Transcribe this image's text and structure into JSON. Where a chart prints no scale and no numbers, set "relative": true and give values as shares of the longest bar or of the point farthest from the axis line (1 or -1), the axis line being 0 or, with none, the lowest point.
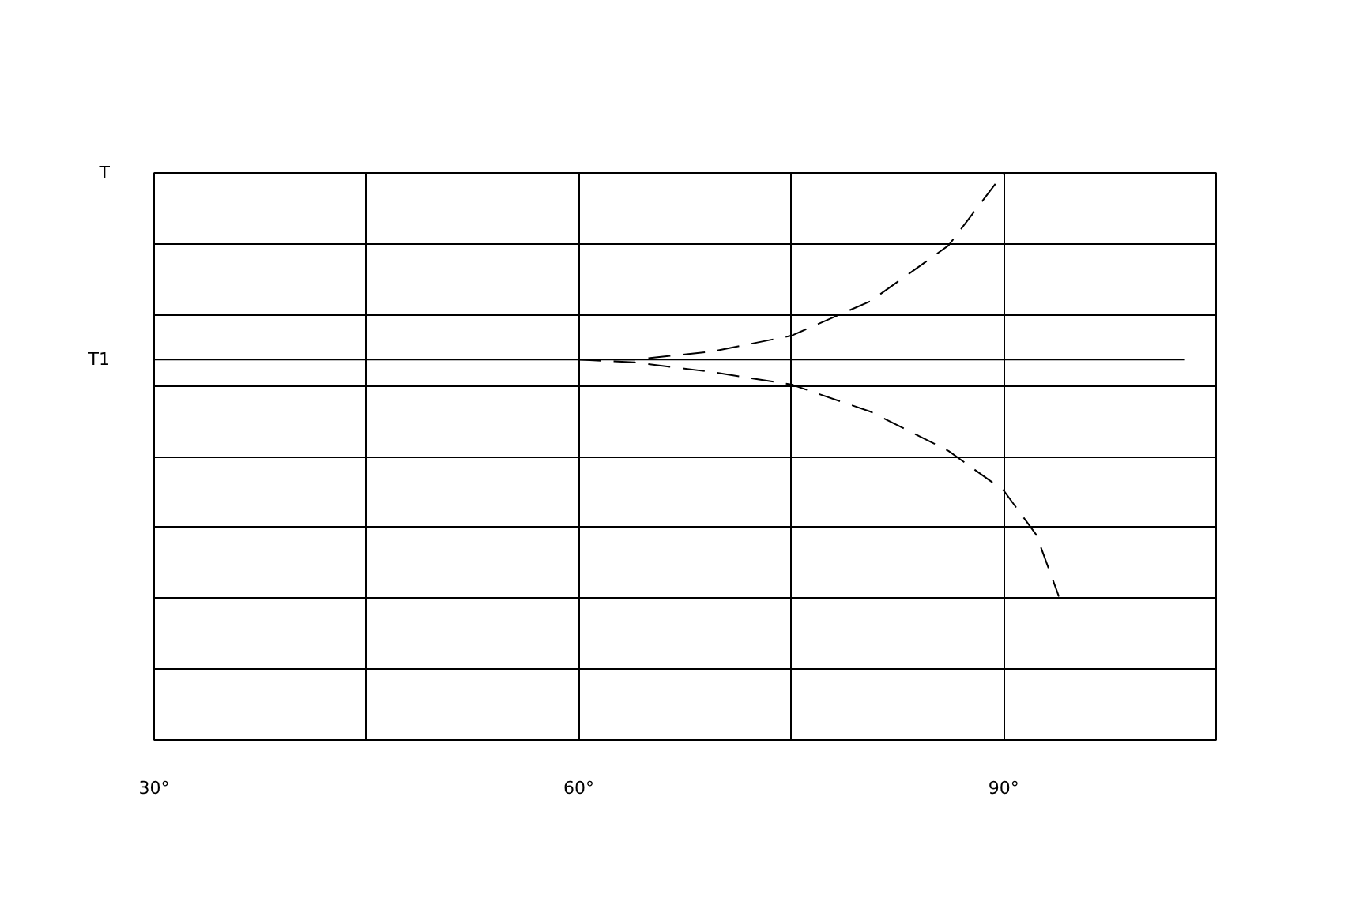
{
  "chart_data": {
    "type": "line",
    "relative": true,
    "xlim": [
      30,
      105
    ],
    "xticks": [
      {
        "value": 30,
        "label": "30°"
      },
      {
        "value": 45,
        "label": null
      },
      {
        "value": 60,
        "label": "60°"
      },
      {
        "value": 75,
        "label": null
      },
      {
        "value": 90,
        "label": "90°"
      },
      {
        "value": 105,
        "label": null
      }
    ],
    "ylabel": "T",
    "grid": true,
    "marker": "none",
    "series": [
      {
        "name": "T1",
        "color": "#000000",
        "line_style": "solid",
        "x": [
          30,
          102.8
        ],
        "values": [
          0.671,
          0.671
        ]
      },
      {
        "color": "#000000",
        "line_style": "dashed",
        "x": [
          60,
          63.9,
          69.4,
          75,
          80.6,
          86.1,
          90
        ],
        "values": [
          0.671,
          0.671,
          0.685,
          0.713,
          0.774,
          0.872,
          1.0
        ]
      },
      {
        "color": "#000000",
        "line_style": "dashed",
        "x": [
          60,
          63.9,
          69.4,
          75,
          80.6,
          86.1,
          90,
          92.3,
          93.9
        ],
        "values": [
          0.671,
          0.666,
          0.649,
          0.627,
          0.579,
          0.51,
          0.44,
          0.362,
          0.253
        ]
      }
    ]
  }
}
